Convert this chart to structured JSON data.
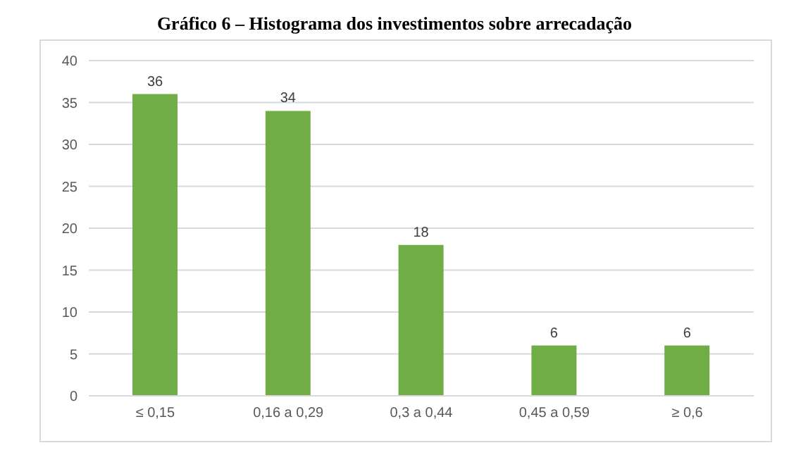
{
  "chart_data": {
    "type": "bar",
    "title": "Gráfico 6 – Histograma dos investimentos sobre arrecadação",
    "categories": [
      "≤ 0,15",
      "0,16 a 0,29",
      "0,3 a 0,44",
      "0,45 a 0,59",
      "≥ 0,6"
    ],
    "values": [
      36,
      34,
      18,
      6,
      6
    ],
    "color": "#70ad47",
    "ylim": [
      0,
      40
    ],
    "yticks": [
      0,
      5,
      10,
      15,
      20,
      25,
      30,
      35,
      40
    ],
    "grid": "y",
    "data_labels": true
  }
}
